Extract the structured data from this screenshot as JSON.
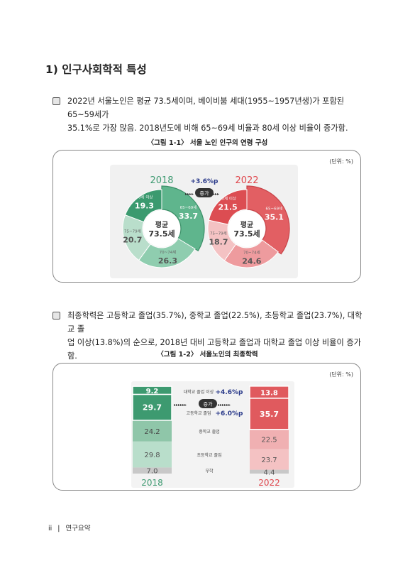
{
  "heading": "1) 인구사회학적 특성",
  "bullet1": {
    "line1": "2022년 서울노인은 평균 73.5세이며, 베이비붐 세대(1955~1957년생)가 포함된 65~59세가",
    "line2": "35.1%로 가장 많음. 2018년도에 비해 65~69세 비율과 80세 이상 비율이 증가함."
  },
  "figure1": {
    "title": "〈그림 1-1〉 서울 노인 인구의 연령 구성",
    "unit": "(단위: %)",
    "change_label": "+3.6%p",
    "increase_label": "증가",
    "colors": {
      "green": "#4aa27a",
      "red": "#e05a5e"
    }
  },
  "bullet2": {
    "line1": "최종학력은 고등학교 졸업(35.7%), 중학교 졸업(22.5%), 초등학교 졸업(23.7%), 대학교 졸",
    "line2": "업 이상(13.8%)의 순으로, 2018년 대비 고등학교 졸업과 대학교 졸업 이상 비율이 증가함."
  },
  "figure2": {
    "title": "〈그림 1-2〉 서울노인의 최종학력",
    "unit": "(단위: %)",
    "increase_label": "증가",
    "college_change": "+4.6%p",
    "high_change": "+6.0%p"
  },
  "chart_data": [
    {
      "type": "pie",
      "title": "",
      "series": [
        {
          "name": "2018",
          "center_label": [
            "평균",
            "73.5세"
          ],
          "slices": [
            {
              "label": "65~69세",
              "value": 33.7
            },
            {
              "label": "70~74세",
              "value": 26.3
            },
            {
              "label": "75~79세",
              "value": 20.7
            },
            {
              "label": "80세 이상",
              "value": 19.3
            }
          ]
        },
        {
          "name": "2022",
          "center_label": [
            "평균",
            "73.5세"
          ],
          "slices": [
            {
              "label": "65~69세",
              "value": 35.1
            },
            {
              "label": "70~74세",
              "value": 24.6
            },
            {
              "label": "75~79세",
              "value": 18.7
            },
            {
              "label": "80세 이상",
              "value": 21.5
            }
          ]
        }
      ]
    },
    {
      "type": "bar",
      "title": "",
      "categories": [
        "2018",
        "2022"
      ],
      "series": [
        {
          "name": "무학",
          "values": [
            7.0,
            4.4
          ]
        },
        {
          "name": "초등학교 졸업",
          "values": [
            29.8,
            23.7
          ]
        },
        {
          "name": "중학교 졸업",
          "values": [
            24.2,
            22.5
          ]
        },
        {
          "name": "고등학교 졸업",
          "values": [
            29.7,
            35.7
          ]
        },
        {
          "name": "대학교 졸업 이상",
          "values": [
            9.2,
            13.8
          ]
        }
      ],
      "value_labels": [
        [
          "7.0",
          "29.8",
          "24.2",
          "29.7",
          "9.2"
        ],
        [
          "4.4",
          "23.7",
          "22.5",
          "35.7",
          "13.8"
        ]
      ]
    }
  ],
  "footer": {
    "page": "ii",
    "section": "연구요약"
  }
}
